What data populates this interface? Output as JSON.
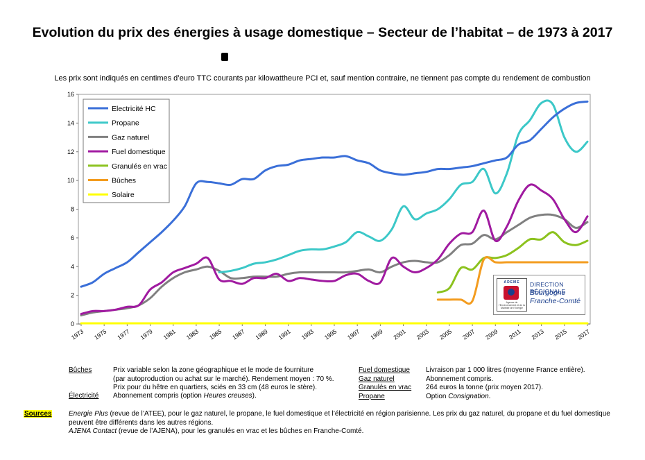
{
  "title": "Evolution du prix des énergies à usage domestique – Secteur de l’habitat – de 1973 à 2017",
  "subtitle": "Les prix sont indiqués en centimes d’euro TTC courants par kilowattheure PCI et, sauf mention contraire, ne tiennent pas compte du rendement de combustion",
  "chart_data": {
    "type": "line",
    "title": "Evolution du prix des énergies à usage domestique – Secteur de l’habitat – de 1973 à 2017",
    "xlabel": "",
    "ylabel": "",
    "xlim": [
      1973,
      2017
    ],
    "ylim": [
      0,
      16
    ],
    "x_ticks": [
      "1973",
      "1975",
      "1977",
      "1979",
      "1981",
      "1983",
      "1985",
      "1987",
      "1989",
      "1991",
      "1993",
      "1995",
      "1997",
      "1999",
      "2001",
      "2003",
      "2005",
      "2007",
      "2009",
      "2011",
      "2013",
      "2015",
      "2017"
    ],
    "y_ticks": [
      "0",
      "2",
      "4",
      "6",
      "8",
      "10",
      "12",
      "14",
      "16"
    ],
    "grid": false,
    "legend_position": "top-left",
    "series": [
      {
        "name": "Electricité HC",
        "color": "#3a6fd8",
        "points": [
          [
            1973,
            2.6
          ],
          [
            1974,
            2.9
          ],
          [
            1975,
            3.5
          ],
          [
            1976,
            3.9
          ],
          [
            1977,
            4.3
          ],
          [
            1978,
            5.0
          ],
          [
            1979,
            5.7
          ],
          [
            1980,
            6.4
          ],
          [
            1981,
            7.2
          ],
          [
            1982,
            8.2
          ],
          [
            1983,
            9.8
          ],
          [
            1984,
            9.9
          ],
          [
            1985,
            9.8
          ],
          [
            1986,
            9.7
          ],
          [
            1987,
            10.1
          ],
          [
            1988,
            10.1
          ],
          [
            1989,
            10.7
          ],
          [
            1990,
            11.0
          ],
          [
            1991,
            11.1
          ],
          [
            1992,
            11.4
          ],
          [
            1993,
            11.5
          ],
          [
            1994,
            11.6
          ],
          [
            1995,
            11.6
          ],
          [
            1996,
            11.7
          ],
          [
            1997,
            11.4
          ],
          [
            1998,
            11.2
          ],
          [
            1999,
            10.7
          ],
          [
            2000,
            10.5
          ],
          [
            2001,
            10.4
          ],
          [
            2002,
            10.5
          ],
          [
            2003,
            10.6
          ],
          [
            2004,
            10.8
          ],
          [
            2005,
            10.8
          ],
          [
            2006,
            10.9
          ],
          [
            2007,
            11.0
          ],
          [
            2008,
            11.2
          ],
          [
            2009,
            11.4
          ],
          [
            2010,
            11.6
          ],
          [
            2011,
            12.5
          ],
          [
            2012,
            12.8
          ],
          [
            2013,
            13.6
          ],
          [
            2014,
            14.4
          ],
          [
            2015,
            15.0
          ],
          [
            2016,
            15.4
          ],
          [
            2017,
            15.5
          ]
        ]
      },
      {
        "name": "Propane",
        "color": "#3cc8c8",
        "points": [
          [
            1985,
            3.6
          ],
          [
            1986,
            3.7
          ],
          [
            1987,
            3.9
          ],
          [
            1988,
            4.2
          ],
          [
            1989,
            4.3
          ],
          [
            1990,
            4.5
          ],
          [
            1991,
            4.8
          ],
          [
            1992,
            5.1
          ],
          [
            1993,
            5.2
          ],
          [
            1994,
            5.2
          ],
          [
            1995,
            5.4
          ],
          [
            1996,
            5.7
          ],
          [
            1997,
            6.4
          ],
          [
            1998,
            6.1
          ],
          [
            1999,
            5.8
          ],
          [
            2000,
            6.6
          ],
          [
            2001,
            8.2
          ],
          [
            2002,
            7.3
          ],
          [
            2003,
            7.7
          ],
          [
            2004,
            8.0
          ],
          [
            2005,
            8.7
          ],
          [
            2006,
            9.7
          ],
          [
            2007,
            9.9
          ],
          [
            2008,
            10.8
          ],
          [
            2009,
            9.1
          ],
          [
            2010,
            10.5
          ],
          [
            2011,
            13.2
          ],
          [
            2012,
            14.2
          ],
          [
            2013,
            15.4
          ],
          [
            2014,
            15.3
          ],
          [
            2015,
            13.0
          ],
          [
            2016,
            12.0
          ],
          [
            2017,
            12.7
          ]
        ]
      },
      {
        "name": "Gaz naturel",
        "color": "#808080",
        "points": [
          [
            1973,
            0.6
          ],
          [
            1974,
            0.8
          ],
          [
            1975,
            0.9
          ],
          [
            1976,
            1.0
          ],
          [
            1977,
            1.1
          ],
          [
            1978,
            1.3
          ],
          [
            1979,
            1.8
          ],
          [
            1980,
            2.6
          ],
          [
            1981,
            3.2
          ],
          [
            1982,
            3.6
          ],
          [
            1983,
            3.8
          ],
          [
            1984,
            4.0
          ],
          [
            1985,
            3.7
          ],
          [
            1986,
            3.2
          ],
          [
            1987,
            3.2
          ],
          [
            1988,
            3.3
          ],
          [
            1989,
            3.3
          ],
          [
            1990,
            3.3
          ],
          [
            1991,
            3.5
          ],
          [
            1992,
            3.6
          ],
          [
            1993,
            3.6
          ],
          [
            1994,
            3.6
          ],
          [
            1995,
            3.6
          ],
          [
            1996,
            3.6
          ],
          [
            1997,
            3.7
          ],
          [
            1998,
            3.8
          ],
          [
            1999,
            3.6
          ],
          [
            2000,
            4.0
          ],
          [
            2001,
            4.3
          ],
          [
            2002,
            4.4
          ],
          [
            2003,
            4.3
          ],
          [
            2004,
            4.3
          ],
          [
            2005,
            4.8
          ],
          [
            2006,
            5.5
          ],
          [
            2007,
            5.6
          ],
          [
            2008,
            6.2
          ],
          [
            2009,
            5.9
          ],
          [
            2010,
            6.4
          ],
          [
            2011,
            6.9
          ],
          [
            2012,
            7.4
          ],
          [
            2013,
            7.6
          ],
          [
            2014,
            7.6
          ],
          [
            2015,
            7.3
          ],
          [
            2016,
            6.7
          ],
          [
            2017,
            7.1
          ]
        ]
      },
      {
        "name": "Fuel domestique",
        "color": "#a01aa0",
        "points": [
          [
            1973,
            0.7
          ],
          [
            1974,
            0.9
          ],
          [
            1975,
            0.9
          ],
          [
            1976,
            1.0
          ],
          [
            1977,
            1.2
          ],
          [
            1978,
            1.3
          ],
          [
            1979,
            2.4
          ],
          [
            1980,
            2.9
          ],
          [
            1981,
            3.6
          ],
          [
            1982,
            3.9
          ],
          [
            1983,
            4.2
          ],
          [
            1984,
            4.6
          ],
          [
            1985,
            3.1
          ],
          [
            1986,
            3.0
          ],
          [
            1987,
            2.8
          ],
          [
            1988,
            3.2
          ],
          [
            1989,
            3.2
          ],
          [
            1990,
            3.5
          ],
          [
            1991,
            3.0
          ],
          [
            1992,
            3.2
          ],
          [
            1993,
            3.1
          ],
          [
            1994,
            3.0
          ],
          [
            1995,
            3.0
          ],
          [
            1996,
            3.4
          ],
          [
            1997,
            3.5
          ],
          [
            1998,
            3.0
          ],
          [
            1999,
            2.9
          ],
          [
            2000,
            4.6
          ],
          [
            2001,
            4.0
          ],
          [
            2002,
            3.6
          ],
          [
            2003,
            3.9
          ],
          [
            2004,
            4.5
          ],
          [
            2005,
            5.6
          ],
          [
            2006,
            6.3
          ],
          [
            2007,
            6.4
          ],
          [
            2008,
            7.9
          ],
          [
            2009,
            5.8
          ],
          [
            2010,
            6.8
          ],
          [
            2011,
            8.6
          ],
          [
            2012,
            9.7
          ],
          [
            2013,
            9.3
          ],
          [
            2014,
            8.7
          ],
          [
            2015,
            7.3
          ],
          [
            2016,
            6.4
          ],
          [
            2017,
            7.5
          ]
        ]
      },
      {
        "name": "Granulés en vrac",
        "color": "#8cc21e",
        "points": [
          [
            2004,
            2.2
          ],
          [
            2005,
            2.5
          ],
          [
            2006,
            3.9
          ],
          [
            2007,
            3.8
          ],
          [
            2008,
            4.6
          ],
          [
            2009,
            4.6
          ],
          [
            2010,
            4.8
          ],
          [
            2011,
            5.3
          ],
          [
            2012,
            5.9
          ],
          [
            2013,
            5.9
          ],
          [
            2014,
            6.4
          ],
          [
            2015,
            5.7
          ],
          [
            2016,
            5.5
          ],
          [
            2017,
            5.8
          ]
        ]
      },
      {
        "name": "Bûches",
        "color": "#f39c1f",
        "points": [
          [
            2004,
            1.7
          ],
          [
            2005,
            1.7
          ],
          [
            2006,
            1.7
          ],
          [
            2007,
            1.6
          ],
          [
            2008,
            4.5
          ],
          [
            2009,
            4.3
          ],
          [
            2010,
            4.3
          ],
          [
            2011,
            4.3
          ],
          [
            2012,
            4.3
          ],
          [
            2013,
            4.3
          ],
          [
            2014,
            4.3
          ],
          [
            2015,
            4.3
          ],
          [
            2016,
            4.3
          ],
          [
            2017,
            4.3
          ]
        ]
      },
      {
        "name": "Solaire",
        "color": "#ffff00",
        "points": [
          [
            1973,
            0.05
          ],
          [
            2017,
            0.05
          ]
        ]
      }
    ]
  },
  "notes_left": {
    "buches_label": "Bûches",
    "buches_line1": "Prix variable selon la zone géographique et le mode de fourniture",
    "buches_line2": "(par autoproduction ou achat sur le marché). Rendement moyen : 70 %.",
    "buches_line3": "Prix pour du hêtre en quartiers, sciés en 33 cm (48 euros le stère).",
    "elec_label": "Électricité",
    "elec_text_a": "Abonnement compris (option ",
    "elec_text_b": "Heures creuses",
    "elec_text_c": ")."
  },
  "notes_right": {
    "fuel_label": "Fuel domestique",
    "fuel_text": "Livraison par 1 000 litres (moyenne France entière).",
    "gaz_label": "Gaz naturel",
    "gaz_text": "Abonnement compris.",
    "gran_label": "Granulés en vrac",
    "gran_text": "264 euros la tonne (prix moyen 2017).",
    "prop_label": "Propane",
    "prop_text_a": "Option ",
    "prop_text_b": "Consignation",
    "prop_text_c": "."
  },
  "sources": {
    "label": "Sources",
    "line1_a": "Energie Plus",
    "line1_b": " (revue de l’ATEE), pour le gaz naturel, le propane, le fuel domestique et l’électricité en région parisienne. Les prix du gaz naturel, du propane et du fuel domestique",
    "line2": "peuvent être différents dans les autres régions.",
    "line3_a": "AJENA Contact",
    "line3_b": " (revue de l’AJENA), pour les granulés en vrac et les bûches en Franche-Comté."
  },
  "logo": {
    "brand": "ADEME",
    "small": "Agence de l’Environnement et de la Maîtrise de l’Energie",
    "direction": "DIRECTION RÉGIONALE",
    "region1": "Bourgogne",
    "region2": "Franche-Comté"
  }
}
